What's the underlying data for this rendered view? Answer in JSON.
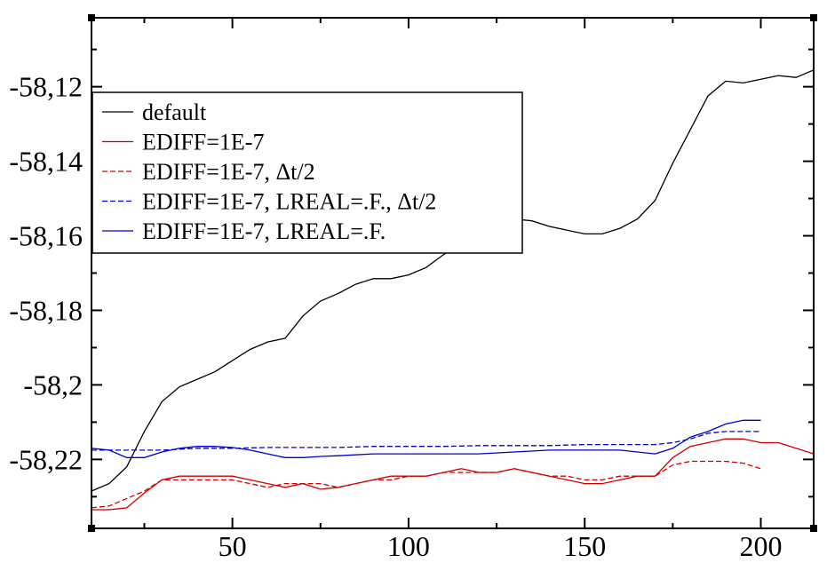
{
  "chart_data": {
    "type": "line",
    "title": "",
    "xlabel": "",
    "ylabel": "",
    "xlim": [
      10,
      215
    ],
    "ylim": [
      -58.2385,
      -58.1015
    ],
    "x_ticks": [
      50,
      100,
      150,
      200
    ],
    "x_tick_labels": [
      "50",
      "100",
      "150",
      "200"
    ],
    "y_ticks": [
      -58.12,
      -58.14,
      -58.16,
      -58.18,
      -58.2,
      -58.22
    ],
    "y_tick_labels": [
      "-58,12",
      "-58,14",
      "-58,16",
      "-58,18",
      "-58,2",
      "-58,22"
    ],
    "grid": false,
    "legend_position": "top-left",
    "series": [
      {
        "name": "default",
        "color": "#000000",
        "dash": "solid",
        "x": [
          10,
          15,
          20,
          25,
          30,
          35,
          40,
          45,
          50,
          55,
          60,
          65,
          70,
          75,
          80,
          85,
          90,
          95,
          100,
          105,
          110,
          115,
          120,
          125,
          130,
          135,
          140,
          145,
          150,
          155,
          160,
          165,
          170,
          175,
          180,
          185,
          190,
          195,
          200,
          205,
          210,
          215
        ],
        "y": [
          -58.2285,
          -58.2265,
          -58.222,
          -58.2125,
          -58.2045,
          -58.2005,
          -58.1985,
          -58.1965,
          -58.1935,
          -58.1905,
          -58.1885,
          -58.1875,
          -58.1815,
          -58.1775,
          -58.1755,
          -58.173,
          -58.1715,
          -58.1715,
          -58.1705,
          -58.1685,
          -58.165,
          -58.162,
          -58.1585,
          -58.1565,
          -58.1555,
          -58.156,
          -58.1575,
          -58.1585,
          -58.1595,
          -58.1595,
          -58.158,
          -58.1555,
          -58.1505,
          -58.1405,
          -58.1315,
          -58.1225,
          -58.1185,
          -58.119,
          -58.118,
          -58.117,
          -58.1175,
          -58.1155
        ]
      },
      {
        "name": "EDIFF=1E-7",
        "color": "#cc0000",
        "dash": "solid",
        "x": [
          10,
          15,
          20,
          25,
          30,
          35,
          40,
          45,
          50,
          55,
          60,
          65,
          70,
          75,
          80,
          85,
          90,
          95,
          100,
          105,
          110,
          115,
          120,
          125,
          130,
          135,
          140,
          145,
          150,
          155,
          160,
          165,
          170,
          175,
          180,
          185,
          190,
          195,
          200,
          205,
          210,
          215
        ],
        "y": [
          -58.2335,
          -58.2335,
          -58.233,
          -58.229,
          -58.2255,
          -58.2245,
          -58.2245,
          -58.2245,
          -58.2245,
          -58.2255,
          -58.2265,
          -58.2275,
          -58.2265,
          -58.228,
          -58.2275,
          -58.2265,
          -58.2255,
          -58.2245,
          -58.2245,
          -58.2245,
          -58.2235,
          -58.2225,
          -58.2235,
          -58.2235,
          -58.2225,
          -58.2235,
          -58.2245,
          -58.2255,
          -58.2265,
          -58.2265,
          -58.2255,
          -58.2245,
          -58.2245,
          -58.2195,
          -58.2165,
          -58.2155,
          -58.2145,
          -58.2145,
          -58.2155,
          -58.2155,
          -58.217,
          -58.2185
        ]
      },
      {
        "name": "EDIFF=1E-7,  Δt/2",
        "color": "#cc0000",
        "dash": "dashed",
        "x": [
          10,
          15,
          20,
          25,
          30,
          35,
          40,
          45,
          50,
          55,
          60,
          65,
          70,
          75,
          80,
          85,
          90,
          95,
          100,
          105,
          110,
          115,
          120,
          125,
          130,
          135,
          140,
          145,
          150,
          155,
          160,
          165,
          170,
          175,
          180,
          185,
          190,
          195,
          200
        ],
        "y": [
          -58.233,
          -58.2325,
          -58.2305,
          -58.2285,
          -58.2255,
          -58.2255,
          -58.2255,
          -58.2255,
          -58.2255,
          -58.2265,
          -58.2275,
          -58.2265,
          -58.2265,
          -58.2265,
          -58.2275,
          -58.2265,
          -58.2255,
          -58.2255,
          -58.2245,
          -58.2245,
          -58.2235,
          -58.2235,
          -58.2235,
          -58.2235,
          -58.2225,
          -58.2235,
          -58.2245,
          -58.2245,
          -58.2255,
          -58.2255,
          -58.2245,
          -58.2245,
          -58.2245,
          -58.2215,
          -58.2205,
          -58.2205,
          -58.2205,
          -58.221,
          -58.2225
        ]
      },
      {
        "name": "EDIFF=1E-7, LREAL=.F., Δt/2",
        "color": "#0000cc",
        "dash": "dashed",
        "x": [
          10,
          20,
          30,
          40,
          50,
          60,
          70,
          80,
          90,
          100,
          110,
          120,
          130,
          140,
          150,
          160,
          170,
          175,
          180,
          185,
          190,
          195,
          200
        ],
        "y": [
          -58.2175,
          -58.2175,
          -58.2175,
          -58.217,
          -58.217,
          -58.2168,
          -58.2168,
          -58.2168,
          -58.2165,
          -58.2165,
          -58.2165,
          -58.2163,
          -58.2163,
          -58.2163,
          -58.216,
          -58.216,
          -58.216,
          -58.2155,
          -58.2145,
          -58.213,
          -58.2125,
          -58.2125,
          -58.2125
        ]
      },
      {
        "name": "EDIFF=1E-7, LREAL=.F.",
        "color": "#0000cc",
        "dash": "solid",
        "x": [
          10,
          15,
          20,
          25,
          30,
          35,
          40,
          45,
          50,
          55,
          60,
          65,
          70,
          75,
          80,
          90,
          100,
          110,
          120,
          130,
          140,
          150,
          160,
          165,
          170,
          175,
          180,
          185,
          190,
          195,
          200
        ],
        "y": [
          -58.217,
          -58.2175,
          -58.2195,
          -58.2195,
          -58.218,
          -58.217,
          -58.2165,
          -58.2165,
          -58.2168,
          -58.2175,
          -58.2185,
          -58.2195,
          -58.2195,
          -58.2192,
          -58.219,
          -58.2185,
          -58.2185,
          -58.2185,
          -58.2185,
          -58.218,
          -58.2175,
          -58.2175,
          -58.2175,
          -58.218,
          -58.2185,
          -58.217,
          -58.214,
          -58.2125,
          -58.2105,
          -58.2095,
          -58.2095
        ]
      }
    ]
  }
}
